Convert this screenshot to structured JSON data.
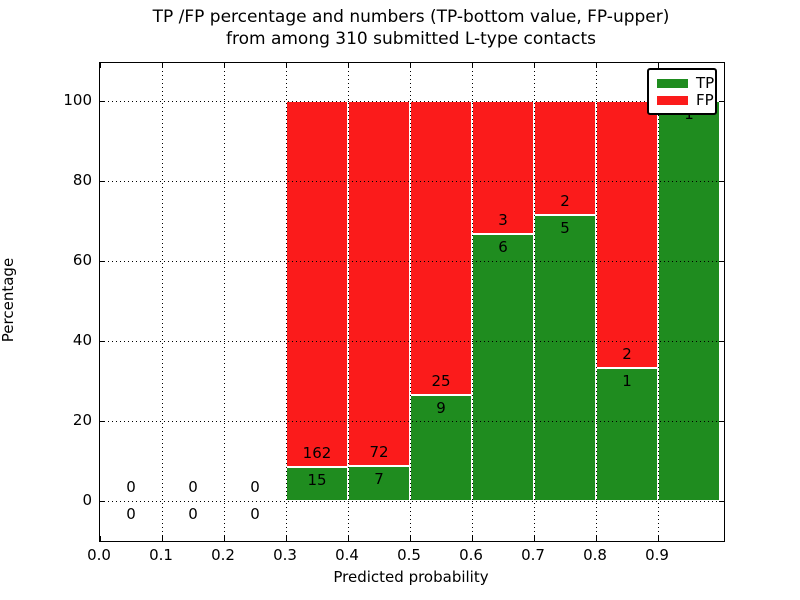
{
  "chart_data": {
    "type": "bar",
    "stacked": true,
    "title": "TP /FP percentage and numbers (TP-bottom value, FP-upper)",
    "subtitle": "from among 310 submitted L-type contacts",
    "xlabel": "Predicted probability",
    "ylabel": "Percentage",
    "x_tick_labels": [
      "0.0",
      "0.1",
      "0.2",
      "0.3",
      "0.4",
      "0.5",
      "0.6",
      "0.7",
      "0.8",
      "0.9"
    ],
    "y_tick_values": [
      0,
      20,
      40,
      60,
      80,
      100
    ],
    "xlim": [
      0.0,
      1.005
    ],
    "ylim": [
      -10,
      109.5
    ],
    "bar_width": 0.1,
    "grid": {
      "style": "dotted",
      "axes": "both",
      "above_bars": true
    },
    "colors": {
      "tp": "#1f8c1f",
      "fp": "#fb1b1b"
    },
    "legend": {
      "position": "upper right",
      "entries": [
        {
          "label": "TP",
          "color": "#1f8c1f"
        },
        {
          "label": "FP",
          "color": "#fb1b1b"
        }
      ]
    },
    "bins": [
      {
        "x_start": 0.0,
        "x_end": 0.1,
        "tp_count": 0,
        "fp_count": 0,
        "tp_percent": 0,
        "has_bar": false
      },
      {
        "x_start": 0.1,
        "x_end": 0.2,
        "tp_count": 0,
        "fp_count": 0,
        "tp_percent": 0,
        "has_bar": false
      },
      {
        "x_start": 0.2,
        "x_end": 0.3,
        "tp_count": 0,
        "fp_count": 0,
        "tp_percent": 0,
        "has_bar": false
      },
      {
        "x_start": 0.3,
        "x_end": 0.4,
        "tp_count": 15,
        "fp_count": 162,
        "tp_percent": 8.47,
        "has_bar": true
      },
      {
        "x_start": 0.4,
        "x_end": 0.5,
        "tp_count": 7,
        "fp_count": 72,
        "tp_percent": 8.86,
        "has_bar": true
      },
      {
        "x_start": 0.5,
        "x_end": 0.6,
        "tp_count": 9,
        "fp_count": 25,
        "tp_percent": 26.47,
        "has_bar": true
      },
      {
        "x_start": 0.6,
        "x_end": 0.7,
        "tp_count": 6,
        "fp_count": 3,
        "tp_percent": 66.67,
        "has_bar": true
      },
      {
        "x_start": 0.7,
        "x_end": 0.8,
        "tp_count": 5,
        "fp_count": 2,
        "tp_percent": 71.43,
        "has_bar": true
      },
      {
        "x_start": 0.8,
        "x_end": 0.9,
        "tp_count": 1,
        "fp_count": 2,
        "tp_percent": 33.33,
        "has_bar": true
      },
      {
        "x_start": 0.9,
        "x_end": 1.0,
        "tp_count": 1,
        "fp_count": 0,
        "tp_percent": 100,
        "has_bar": true,
        "fp_label_hidden_by_legend": true
      }
    ]
  }
}
